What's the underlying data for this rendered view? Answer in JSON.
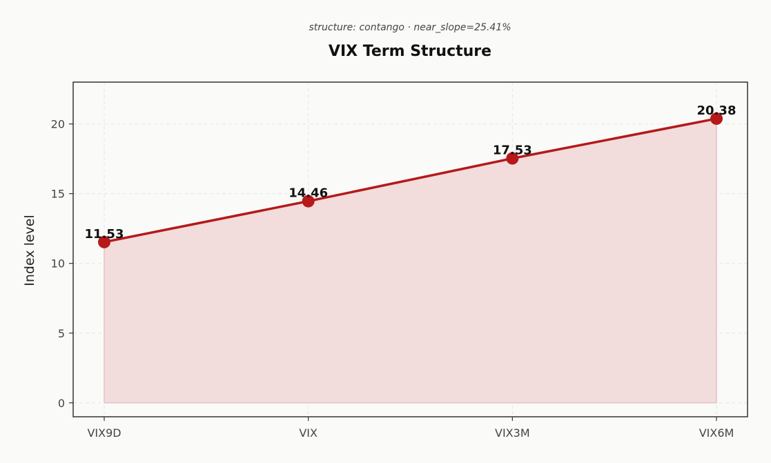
{
  "chart_data": {
    "type": "area",
    "subtitle": "structure: contango · near_slope=25.41%",
    "title": "VIX Term Structure",
    "xlabel": "",
    "ylabel": "Index level",
    "categories": [
      "VIX9D",
      "VIX",
      "VIX3M",
      "VIX6M"
    ],
    "values": [
      11.53,
      14.46,
      17.53,
      20.38
    ],
    "data_labels": [
      "11.53",
      "14.46",
      "17.53",
      "20.38"
    ],
    "ylim": [
      -1,
      23
    ],
    "yticks": [
      0,
      5,
      10,
      15,
      20
    ],
    "grid": true,
    "legend": "none",
    "colors": {
      "line": "#b5191a",
      "fill": "#f2dcdc",
      "grid": "#e6e6e6",
      "axis": "#333333"
    }
  }
}
